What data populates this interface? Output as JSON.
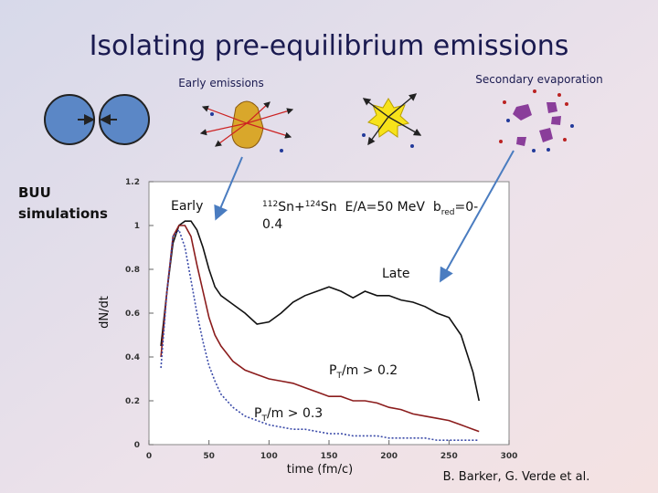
{
  "slide": {
    "title": "Isolating pre-equilibrium emissions",
    "early_emissions": "Early emissions",
    "secondary_evaporation": "Secondary evaporation",
    "buu": [
      "BUU",
      "simulations"
    ],
    "early": "Early",
    "late": "Late",
    "reaction": {
      "sup1": "112",
      "t1": "Sn+",
      "sup2": "124",
      "t2": "Sn  E/A=50 MeV  b",
      "sub": "red",
      "t3": "=0-",
      "line2": "0.4"
    },
    "label_02": {
      "p": "P",
      "sub": "T",
      "rest": "/m > 0.2"
    },
    "label_03": {
      "p": "P",
      "sub": "T",
      "rest": "/m > 0.3"
    },
    "credit": "B. Barker, G. Verde et al."
  },
  "chart_data": {
    "type": "line",
    "x_label": "time (fm/c)",
    "y_label": "dN/dt",
    "x": [
      10,
      15,
      20,
      25,
      30,
      35,
      40,
      45,
      50,
      55,
      60,
      70,
      80,
      90,
      100,
      110,
      120,
      130,
      140,
      150,
      160,
      170,
      180,
      190,
      200,
      210,
      220,
      230,
      240,
      250,
      260,
      270,
      275
    ],
    "series": [
      {
        "color": "#111111",
        "style": "solid",
        "values": [
          0.45,
          0.7,
          0.92,
          1.0,
          1.02,
          1.02,
          0.98,
          0.9,
          0.8,
          0.72,
          0.68,
          0.64,
          0.6,
          0.55,
          0.56,
          0.6,
          0.65,
          0.68,
          0.7,
          0.72,
          0.7,
          0.67,
          0.7,
          0.68,
          0.68,
          0.66,
          0.65,
          0.63,
          0.6,
          0.58,
          0.5,
          0.33,
          0.2
        ]
      },
      {
        "color": "#8b1c1c",
        "style": "solid",
        "values": [
          0.4,
          0.7,
          0.95,
          1.0,
          1.0,
          0.95,
          0.82,
          0.7,
          0.58,
          0.5,
          0.45,
          0.38,
          0.34,
          0.32,
          0.3,
          0.29,
          0.28,
          0.26,
          0.24,
          0.22,
          0.22,
          0.2,
          0.2,
          0.19,
          0.17,
          0.16,
          0.14,
          0.13,
          0.12,
          0.11,
          0.09,
          0.07,
          0.06
        ]
      },
      {
        "color": "#3a4aa8",
        "style": "dotted",
        "values": [
          0.35,
          0.7,
          0.95,
          0.98,
          0.9,
          0.75,
          0.6,
          0.47,
          0.36,
          0.29,
          0.23,
          0.17,
          0.13,
          0.11,
          0.09,
          0.08,
          0.07,
          0.07,
          0.06,
          0.05,
          0.05,
          0.04,
          0.04,
          0.04,
          0.03,
          0.03,
          0.03,
          0.03,
          0.02,
          0.02,
          0.02,
          0.02,
          0.02
        ]
      }
    ],
    "xlim": [
      0,
      300
    ],
    "xticks": [
      0,
      50,
      100,
      150,
      200,
      250,
      300
    ],
    "ylim": [
      0,
      1.2
    ],
    "yticks": [
      0,
      0.2,
      0.4,
      0.6,
      0.8,
      1,
      1.2
    ]
  }
}
